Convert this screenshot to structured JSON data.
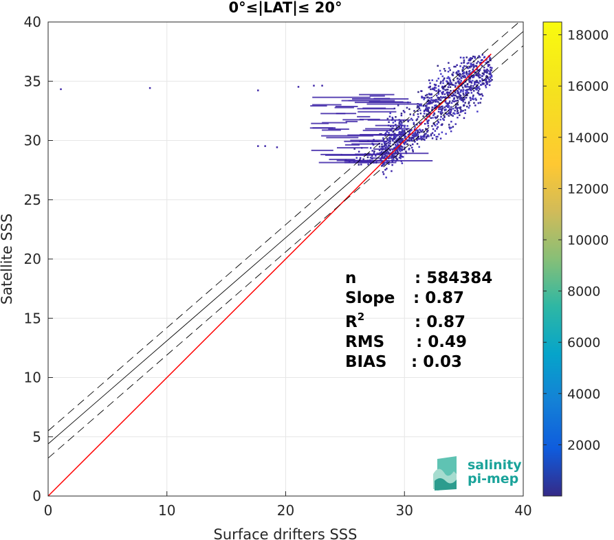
{
  "chart_data": {
    "type": "scatter",
    "title": "0°≤|LAT|≤ 20°",
    "xlabel": "Surface drifters SSS",
    "ylabel": "Satellite SSS",
    "xlim": [
      0,
      40
    ],
    "ylim": [
      0,
      40
    ],
    "x_ticks": [
      "0",
      "10",
      "20",
      "30",
      "40"
    ],
    "y_ticks": [
      "0",
      "5",
      "10",
      "15",
      "20",
      "25",
      "30",
      "35",
      "40"
    ],
    "grid": true,
    "colorbar": {
      "range": [
        0,
        18500
      ],
      "ticks": [
        "2000",
        "4000",
        "6000",
        "8000",
        "10000",
        "12000",
        "14000",
        "16000",
        "18000"
      ],
      "tick_values": [
        2000,
        4000,
        6000,
        8000,
        10000,
        12000,
        14000,
        16000,
        18000
      ],
      "colormap": "parula"
    },
    "lines": [
      {
        "name": "one-to-one",
        "style": "solid",
        "color": "#ff0000",
        "x": [
          0,
          37.3
        ],
        "y": [
          0,
          37.3
        ]
      },
      {
        "name": "regression",
        "style": "solid",
        "color": "#000000",
        "x": [
          0,
          40
        ],
        "y": [
          4.4,
          39.2
        ]
      },
      {
        "name": "regression-upper",
        "style": "dashed",
        "color": "#000000",
        "x": [
          0,
          40
        ],
        "y": [
          5.5,
          40.3
        ]
      },
      {
        "name": "regression-lower",
        "style": "dashed",
        "color": "#000000",
        "x": [
          0,
          40
        ],
        "y": [
          3.2,
          38.0
        ]
      }
    ],
    "density_clusters": [
      {
        "x": [
          28.5,
          37.3
        ],
        "y": [
          30.0,
          37.3
        ],
        "density": 0.2
      },
      {
        "x": [
          31.5,
          37.3
        ],
        "y": [
          32.0,
          37.2
        ],
        "density": 0.15
      },
      {
        "x": [
          28.0,
          33.0
        ],
        "y": [
          26.5,
          31.0
        ],
        "density": 0.15
      },
      {
        "x": [
          24.0,
          30.0
        ],
        "y": [
          28.0,
          33.5
        ],
        "density": 0.1
      }
    ],
    "outliers": [
      [
        1.0,
        34.4
      ],
      [
        8.5,
        34.5
      ],
      [
        17.6,
        34.3
      ],
      [
        17.6,
        29.6
      ],
      [
        18.2,
        29.6
      ],
      [
        19.2,
        29.5
      ],
      [
        21.0,
        34.6
      ],
      [
        22.3,
        34.7
      ],
      [
        23.0,
        34.7
      ]
    ],
    "stats": {
      "n_label": "n",
      "n_value": ": 584384",
      "slope_label": "Slope",
      "slope_value": ": 0.87",
      "r2_label": "R",
      "r2_sup": "2",
      "r2_value": ": 0.87",
      "rms_label": "RMS",
      "rms_value": ": 0.49",
      "bias_label": "BIAS",
      "bias_value": ": 0.03"
    }
  },
  "logo": {
    "line1": "salinity",
    "line2": "pi-mep",
    "color": "#1aa39a"
  }
}
